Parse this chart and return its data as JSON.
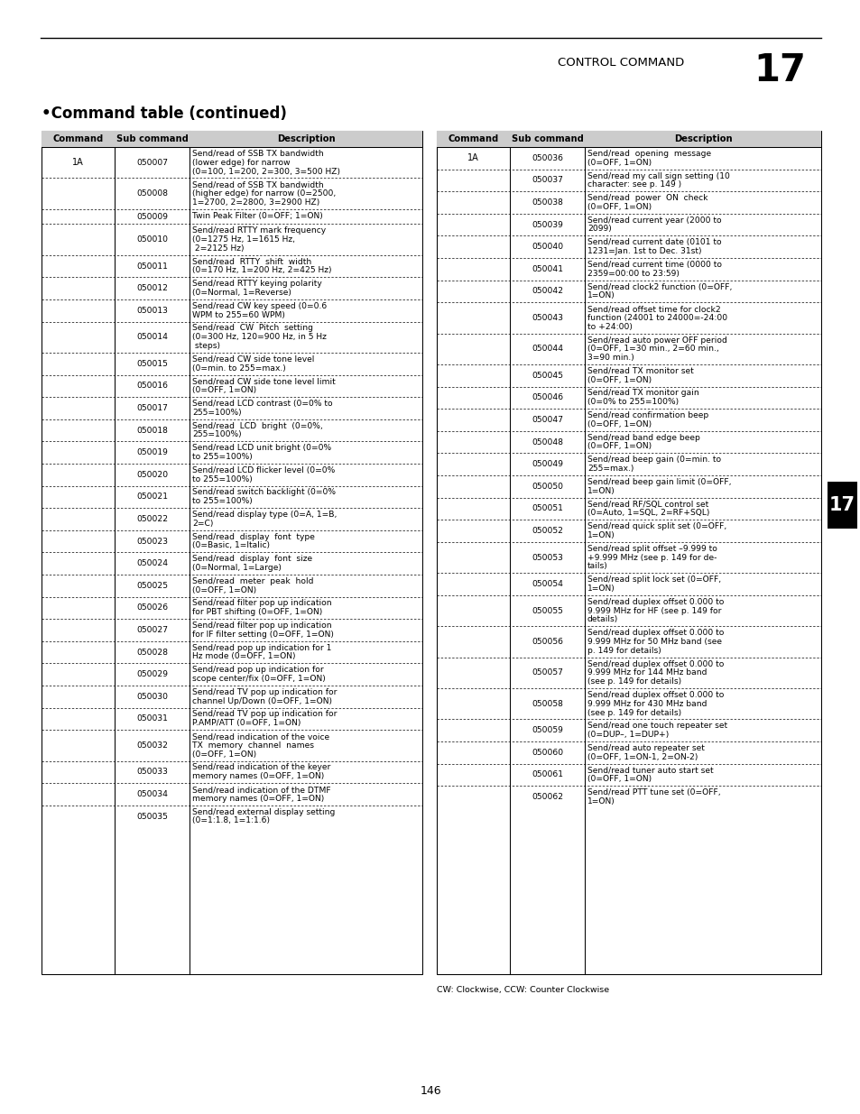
{
  "page_title": "CONTROL COMMAND",
  "page_number": "17",
  "section_title": "•Command table (continued)",
  "page_footer": "146",
  "footnote": "CW: Clockwise, CCW: Counter Clockwise",
  "left_table": {
    "headers": [
      "Command",
      "Sub command",
      "Description"
    ],
    "rows": [
      [
        "1A",
        "050007",
        "Send/read of SSB TX bandwidth\n(lower edge) for narrow\n(0=100, 1=200, 2=300, 3=500 HZ)"
      ],
      [
        "",
        "050008",
        "Send/read of SSB TX bandwidth\n(higher edge) for narrow (0=2500,\n1=2700, 2=2800, 3=2900 HZ)"
      ],
      [
        "",
        "050009",
        "Twin Peak Filter (0=OFF; 1=ON)"
      ],
      [
        "",
        "050010",
        "Send/read RTTY mark frequency\n(0=1275 Hz, 1=1615 Hz,\n 2=2125 Hz)"
      ],
      [
        "",
        "050011",
        "Send/read  RTTY  shift  width\n(0=170 Hz, 1=200 Hz, 2=425 Hz)"
      ],
      [
        "",
        "050012",
        "Send/read RTTY keying polarity\n(0=Normal, 1=Reverse)"
      ],
      [
        "",
        "050013",
        "Send/read CW key speed (0=0.6\nWPM to 255=60 WPM)"
      ],
      [
        "",
        "050014",
        "Send/read  CW  Pitch  setting\n(0=300 Hz, 120=900 Hz, in 5 Hz\n steps)"
      ],
      [
        "",
        "050015",
        "Send/read CW side tone level\n(0=min. to 255=max.)"
      ],
      [
        "",
        "050016",
        "Send/read CW side tone level limit\n(0=OFF, 1=ON)"
      ],
      [
        "",
        "050017",
        "Send/read LCD contrast (0=0% to\n255=100%)"
      ],
      [
        "",
        "050018",
        "Send/read  LCD  bright  (0=0%,\n255=100%)"
      ],
      [
        "",
        "050019",
        "Send/read LCD unit bright (0=0%\nto 255=100%)"
      ],
      [
        "",
        "050020",
        "Send/read LCD flicker level (0=0%\nto 255=100%)"
      ],
      [
        "",
        "050021",
        "Send/read switch backlight (0=0%\nto 255=100%)"
      ],
      [
        "",
        "050022",
        "Send/read display type (0=A, 1=B,\n2=C)"
      ],
      [
        "",
        "050023",
        "Send/read  display  font  type\n(0=Basic, 1=Italic)"
      ],
      [
        "",
        "050024",
        "Send/read  display  font  size\n(0=Normal, 1=Large)"
      ],
      [
        "",
        "050025",
        "Send/read  meter  peak  hold\n(0=OFF, 1=ON)"
      ],
      [
        "",
        "050026",
        "Send/read filter pop up indication\nfor PBT shifting (0=OFF, 1=ON)"
      ],
      [
        "",
        "050027",
        "Send/read filter pop up indication\nfor IF filter setting (0=OFF, 1=ON)"
      ],
      [
        "",
        "050028",
        "Send/read pop up indication for 1\nHz mode (0=OFF, 1=ON)"
      ],
      [
        "",
        "050029",
        "Send/read pop up indication for\nscope center/fix (0=OFF, 1=ON)"
      ],
      [
        "",
        "050030",
        "Send/read TV pop up indication for\nchannel Up/Down (0=OFF, 1=ON)"
      ],
      [
        "",
        "050031",
        "Send/read TV pop up indication for\nP.AMP/ATT (0=OFF, 1=ON)"
      ],
      [
        "",
        "050032",
        "Send/read indication of the voice\nTX  memory  channel  names\n(0=OFF, 1=ON)"
      ],
      [
        "",
        "050033",
        "Send/read indication of the keyer\nmemory names (0=OFF, 1=ON)"
      ],
      [
        "",
        "050034",
        "Send/read indication of the DTMF\nmemory names (0=OFF, 1=ON)"
      ],
      [
        "",
        "050035",
        "Send/read external display setting\n(0=1:1.8, 1=1:1.6)"
      ]
    ]
  },
  "right_table": {
    "headers": [
      "Command",
      "Sub command",
      "Description"
    ],
    "rows": [
      [
        "1A",
        "050036",
        "Send/read  opening  message\n(0=OFF, 1=ON)"
      ],
      [
        "",
        "050037",
        "Send/read my call sign setting (10\ncharacter: see p. 149 )"
      ],
      [
        "",
        "050038",
        "Send/read  power  ON  check\n(0=OFF, 1=ON)"
      ],
      [
        "",
        "050039",
        "Send/read current year (2000 to\n2099)"
      ],
      [
        "",
        "050040",
        "Send/read current date (0101 to\n1231=Jan. 1st to Dec. 31st)"
      ],
      [
        "",
        "050041",
        "Send/read current time (0000 to\n2359=00:00 to 23:59)"
      ],
      [
        "",
        "050042",
        "Send/read clock2 function (0=OFF,\n1=ON)"
      ],
      [
        "",
        "050043",
        "Send/read offset time for clock2\nfunction (24001 to 24000=-24:00\nto +24:00)"
      ],
      [
        "",
        "050044",
        "Send/read auto power OFF period\n(0=OFF, 1=30 min., 2=60 min.,\n3=90 min.)"
      ],
      [
        "",
        "050045",
        "Send/read TX monitor set\n(0=OFF, 1=ON)"
      ],
      [
        "",
        "050046",
        "Send/read TX monitor gain\n(0=0% to 255=100%)"
      ],
      [
        "",
        "050047",
        "Send/read confirmation beep\n(0=OFF, 1=ON)"
      ],
      [
        "",
        "050048",
        "Send/read band edge beep\n(0=OFF, 1=ON)"
      ],
      [
        "",
        "050049",
        "Send/read beep gain (0=min. to\n255=max.)"
      ],
      [
        "",
        "050050",
        "Send/read beep gain limit (0=OFF,\n1=ON)"
      ],
      [
        "",
        "050051",
        "Send/read RF/SQL control set\n(0=Auto, 1=SQL, 2=RF+SQL)"
      ],
      [
        "",
        "050052",
        "Send/read quick split set (0=OFF,\n1=ON)"
      ],
      [
        "",
        "050053",
        "Send/read split offset –9.999 to\n+9.999 MHz (see p. 149 for de-\ntails)"
      ],
      [
        "",
        "050054",
        "Send/read split lock set (0=OFF,\n1=ON)"
      ],
      [
        "",
        "050055",
        "Send/read duplex offset 0.000 to\n9.999 MHz for HF (see p. 149 for\ndetails)"
      ],
      [
        "",
        "050056",
        "Send/read duplex offset 0.000 to\n9.999 MHz for 50 MHz band (see\np. 149 for details)"
      ],
      [
        "",
        "050057",
        "Send/read duplex offset 0.000 to\n9.999 MHz for 144 MHz band\n(see p. 149 for details)"
      ],
      [
        "",
        "050058",
        "Send/read duplex offset 0.000 to\n9.999 MHz for 430 MHz band\n(see p. 149 for details)"
      ],
      [
        "",
        "050059",
        "Send/read one touch repeater set\n(0=DUP–, 1=DUP+)"
      ],
      [
        "",
        "050060",
        "Send/read auto repeater set\n(0=OFF, 1=ON-1, 2=ON-2)"
      ],
      [
        "",
        "050061",
        "Send/read tuner auto start set\n(0=OFF, 1=ON)"
      ],
      [
        "",
        "050062",
        "Send/read PTT tune set (0=OFF,\n1=ON)"
      ]
    ]
  },
  "tab_marker": "17",
  "bg_color": "#ffffff",
  "text_color": "#000000"
}
